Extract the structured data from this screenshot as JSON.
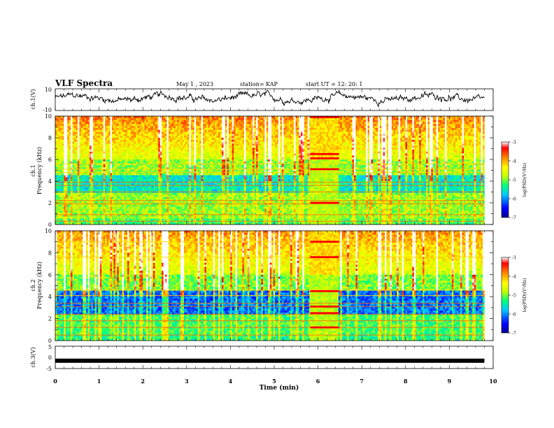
{
  "header": {
    "title": "VLF Spectra",
    "date": "May 1 , 2023",
    "station": "station= KAP",
    "start": "start  UT  =   12: 20: 1"
  },
  "chart_data": [
    {
      "type": "line",
      "panel": "ch1-waveform",
      "ylabel": "ch.1(V)",
      "ylim": [
        -10,
        10
      ],
      "xlim": [
        0,
        10
      ],
      "y_ticks": [
        "10",
        "-10"
      ]
    },
    {
      "type": "heatmap",
      "panel": "ch1-spectrogram",
      "ylabel_lines": [
        "ch.1",
        "Frequency (kHz)"
      ],
      "ylim": [
        0,
        10
      ],
      "y_ticks": [
        "0",
        "2",
        "4",
        "6",
        "8",
        "10"
      ],
      "xlim": [
        0,
        10
      ],
      "colorbar": {
        "label": "log(PSD)(V²/Hz)",
        "range": [
          -7,
          -3
        ],
        "ticks": [
          "-3",
          "-4",
          "-5",
          "-6",
          "-7"
        ]
      }
    },
    {
      "type": "heatmap",
      "panel": "ch2-spectrogram",
      "ylabel_lines": [
        "ch.2",
        "Frequency (kHz)"
      ],
      "ylim": [
        0,
        10
      ],
      "y_ticks": [
        "0",
        "2",
        "4",
        "6",
        "8",
        "10"
      ],
      "xlim": [
        0,
        10
      ],
      "colorbar": {
        "label": "log(PSD)(V²/Hz)",
        "range": [
          -7,
          -3
        ],
        "ticks": [
          "-3",
          "-4",
          "-5",
          "-6",
          "-7"
        ]
      }
    },
    {
      "type": "line",
      "panel": "ch3-waveform",
      "ylabel": "ch.3(V)",
      "ylim": [
        -5,
        5
      ],
      "xlim": [
        0,
        10
      ],
      "y_ticks": [
        "5",
        "0",
        "-5"
      ],
      "level": -1.5
    }
  ],
  "xaxis": {
    "label": "Time  (min)",
    "ticks": [
      "0",
      "1",
      "2",
      "3",
      "4",
      "5",
      "6",
      "7",
      "8",
      "9",
      "10"
    ],
    "data_end_min": 9.8
  },
  "colors": {
    "scale": [
      "#00008f",
      "#0000ff",
      "#00c8ff",
      "#00ff80",
      "#c8ff00",
      "#ffff00",
      "#ff8000",
      "#ff0000",
      "#ffffff"
    ]
  }
}
